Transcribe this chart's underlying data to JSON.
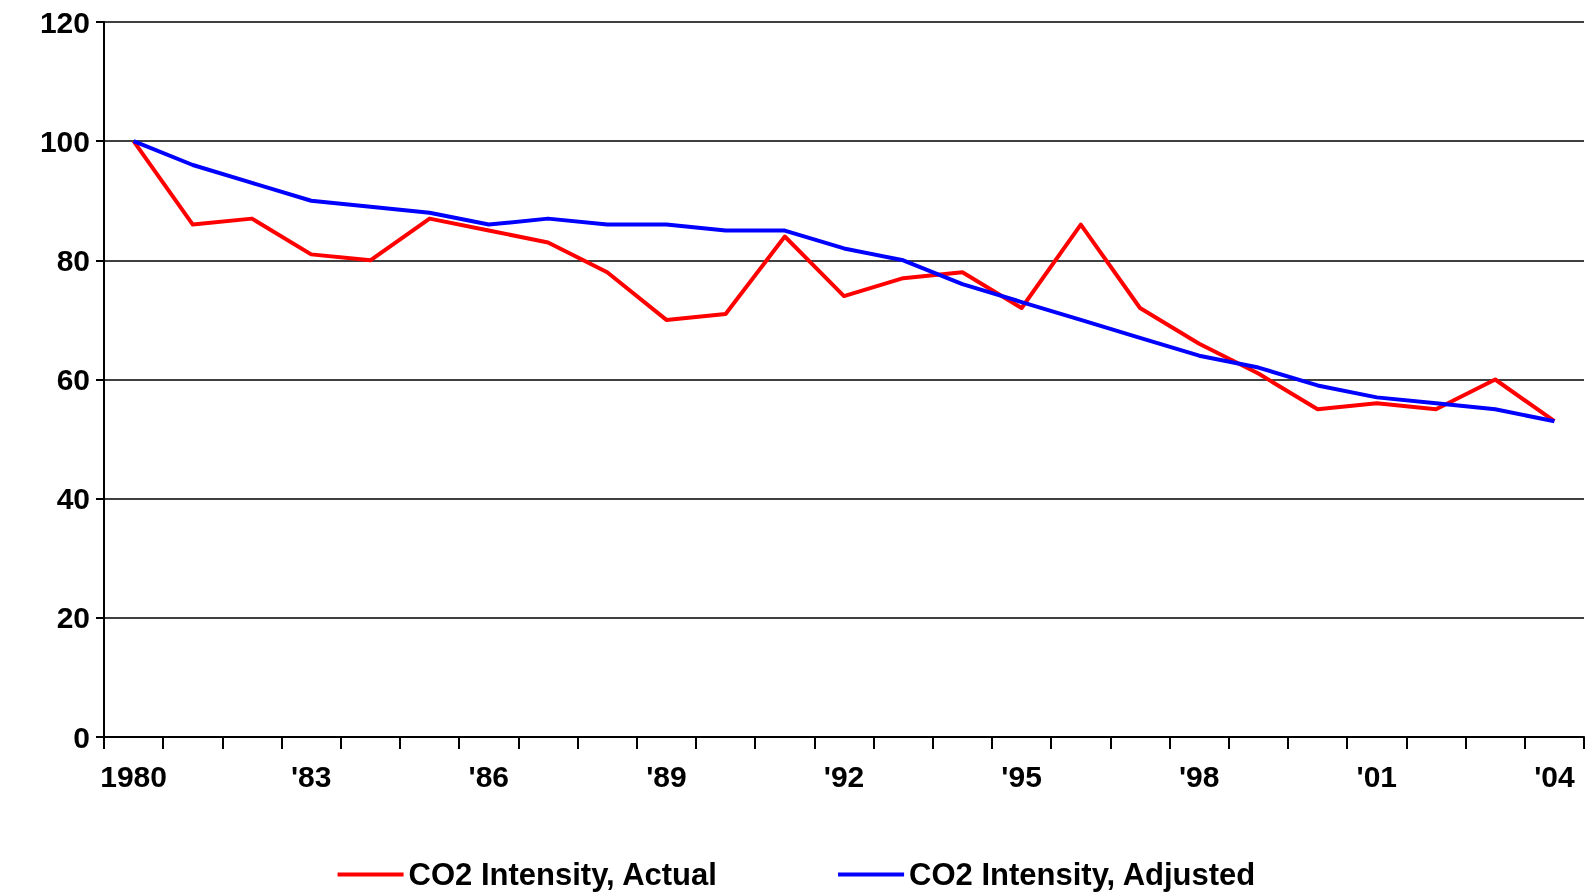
{
  "chart_data": {
    "type": "line",
    "categories": [
      "1980",
      null,
      null,
      "'83",
      null,
      null,
      "'86",
      null,
      null,
      "'89",
      null,
      null,
      "'92",
      null,
      null,
      "'95",
      null,
      null,
      "'98",
      null,
      null,
      "'01",
      null,
      null,
      "'04"
    ],
    "series": [
      {
        "name": "CO2 Intensity, Actual",
        "color": "#ff0000",
        "values": [
          100,
          86,
          87,
          81,
          80,
          87,
          85,
          83,
          78,
          70,
          71,
          84,
          74,
          77,
          78,
          72,
          86,
          72,
          66,
          61,
          55,
          56,
          55,
          60,
          53
        ]
      },
      {
        "name": "CO2 Intensity, Adjusted",
        "color": "#0000ff",
        "values": [
          100,
          96,
          93,
          90,
          89,
          88,
          86,
          87,
          86,
          86,
          85,
          85,
          82,
          80,
          76,
          73,
          70,
          67,
          64,
          62,
          59,
          57,
          56,
          55,
          53
        ]
      }
    ],
    "ylim": [
      0,
      120
    ],
    "yticks": [
      0,
      20,
      40,
      60,
      80,
      100,
      120
    ],
    "grid": "y",
    "legend": "bottom",
    "marker": "none",
    "line_style": "solid"
  }
}
